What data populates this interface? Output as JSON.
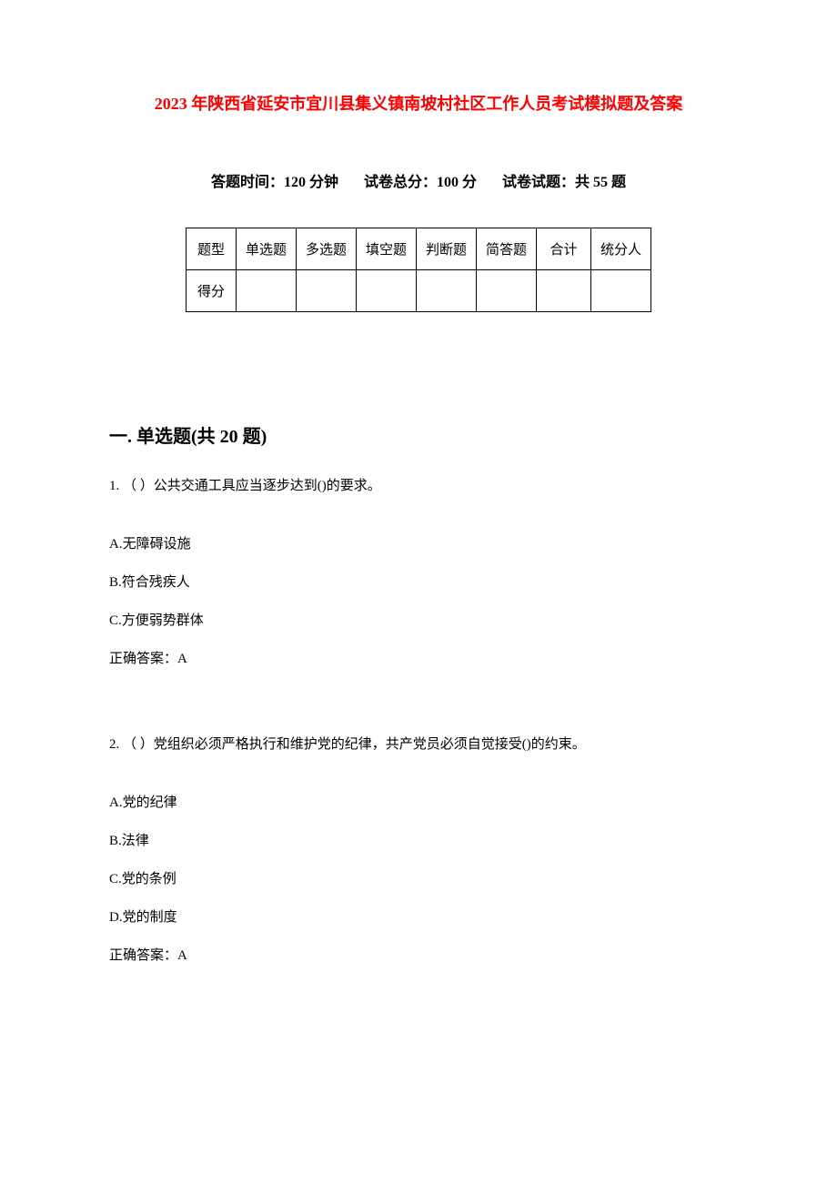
{
  "title": "2023 年陕西省延安市宜川县集义镇南坡村社区工作人员考试模拟题及答案",
  "exam_info": {
    "time_label": "答题时间：120 分钟",
    "total_score_label": "试卷总分：100 分",
    "question_count_label": "试卷试题：共 55 题"
  },
  "score_table": {
    "headers": [
      "题型",
      "单选题",
      "多选题",
      "填空题",
      "判断题",
      "简答题",
      "合计",
      "统分人"
    ],
    "row_label": "得分"
  },
  "section": {
    "heading": "一. 单选题(共 20 题)"
  },
  "questions": [
    {
      "number": "1.",
      "text": "（ ）公共交通工具应当逐步达到()的要求。",
      "options": [
        "A.无障碍设施",
        "B.符合残疾人",
        "C.方便弱势群体"
      ],
      "answer": "正确答案：A"
    },
    {
      "number": "2.",
      "text": "（ ）党组织必须严格执行和维护党的纪律，共产党员必须自觉接受()的约束。",
      "options": [
        "A.党的纪律",
        "B.法律",
        "C.党的条例",
        "D.党的制度"
      ],
      "answer": "正确答案：A"
    }
  ],
  "colors": {
    "title_color": "#ff0000",
    "text_color": "#000000",
    "background_color": "#ffffff",
    "border_color": "#000000"
  },
  "typography": {
    "title_fontsize": 18,
    "info_fontsize": 16,
    "section_heading_fontsize": 20,
    "body_fontsize": 15,
    "font_family": "SimSun"
  }
}
